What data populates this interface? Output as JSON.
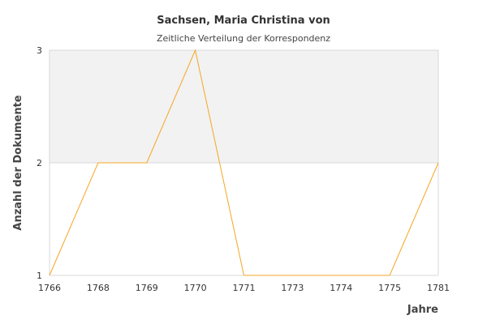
{
  "chart_data": {
    "type": "line",
    "title": "Sachsen, Maria Christina von",
    "subtitle": "Zeitliche Verteilung der Korrespondenz",
    "xlabel": "Jahre",
    "ylabel": "Anzahl der Dokumente",
    "categories": [
      "1766",
      "1768",
      "1769",
      "1770",
      "1771",
      "1773",
      "1774",
      "1775",
      "1781"
    ],
    "series": [
      {
        "values": [
          1,
          2,
          2,
          3,
          1,
          1,
          1,
          1,
          2
        ],
        "color": "#f5a623"
      }
    ],
    "ylim": [
      1,
      3
    ],
    "yticks": [
      "1",
      "2",
      "3"
    ],
    "plot_band": {
      "from": 2,
      "to": 3,
      "color": "#f2f2f2"
    },
    "grid": true
  }
}
